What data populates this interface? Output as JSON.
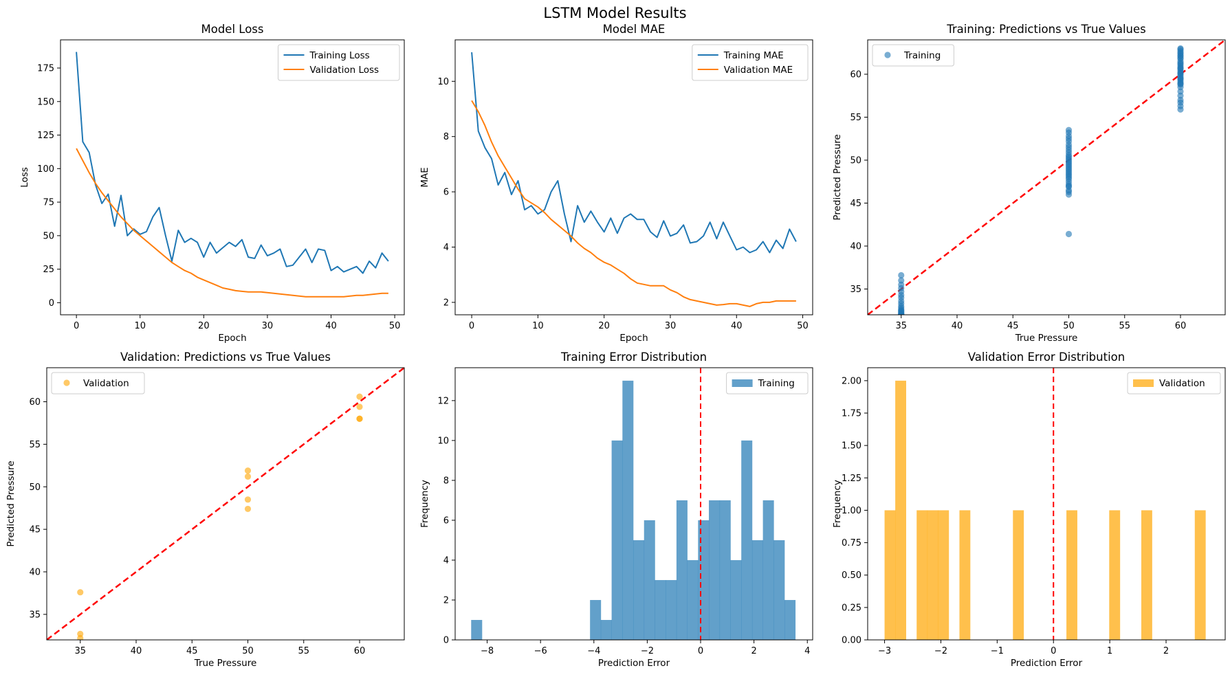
{
  "figure_title": "LSTM Model Results",
  "colors": {
    "blue": "#1f77b4",
    "orange": "#ff7f0e",
    "scatter_orange": "#ffa500",
    "ref_red": "#ff0000"
  },
  "chart_data": [
    {
      "type": "line",
      "title": "Model Loss",
      "xlabel": "Epoch",
      "ylabel": "Loss",
      "xlim": [
        -2.5,
        51.5
      ],
      "ylim": [
        -9,
        196
      ],
      "xticks": [
        0,
        10,
        20,
        30,
        40,
        50
      ],
      "yticks": [
        0,
        25,
        50,
        75,
        100,
        125,
        150,
        175
      ],
      "legend": "upper right",
      "x": [
        0,
        1,
        2,
        3,
        4,
        5,
        6,
        7,
        8,
        9,
        10,
        11,
        12,
        13,
        14,
        15,
        16,
        17,
        18,
        19,
        20,
        21,
        22,
        23,
        24,
        25,
        26,
        27,
        28,
        29,
        30,
        31,
        32,
        33,
        34,
        35,
        36,
        37,
        38,
        39,
        40,
        41,
        42,
        43,
        44,
        45,
        46,
        47,
        48,
        49
      ],
      "series": [
        {
          "name": "Training Loss",
          "color": "#1f77b4",
          "values": [
            187,
            120,
            112,
            88,
            74,
            81,
            57,
            80,
            50,
            55,
            51,
            53,
            64,
            71,
            50,
            31,
            54,
            45,
            48,
            45,
            34,
            45,
            37,
            41,
            45,
            42,
            47,
            34,
            33,
            43,
            35,
            37,
            40,
            27,
            28,
            34,
            40,
            30,
            40,
            39,
            24,
            27,
            23,
            25,
            27,
            22,
            31,
            26,
            37,
            31
          ]
        },
        {
          "name": "Validation Loss",
          "color": "#ff7f0e",
          "values": [
            115,
            106,
            97,
            89,
            82,
            76,
            70,
            64,
            59,
            54,
            50,
            46,
            42,
            38,
            34,
            30,
            27,
            24,
            22,
            19,
            17,
            15,
            13,
            11,
            10,
            9,
            8.5,
            8,
            8,
            8,
            7.5,
            7,
            6.5,
            6,
            5.5,
            5,
            4.5,
            4.5,
            4.5,
            4.5,
            4.5,
            4.5,
            4.5,
            5,
            5.5,
            5.5,
            6,
            6.5,
            7,
            7
          ]
        }
      ]
    },
    {
      "type": "line",
      "title": "Model MAE",
      "xlabel": "Epoch",
      "ylabel": "MAE",
      "xlim": [
        -2.5,
        51.5
      ],
      "ylim": [
        1.55,
        11.5
      ],
      "xticks": [
        0,
        10,
        20,
        30,
        40,
        50
      ],
      "yticks": [
        2,
        4,
        6,
        8,
        10
      ],
      "legend": "upper right",
      "x": [
        0,
        1,
        2,
        3,
        4,
        5,
        6,
        7,
        8,
        9,
        10,
        11,
        12,
        13,
        14,
        15,
        16,
        17,
        18,
        19,
        20,
        21,
        22,
        23,
        24,
        25,
        26,
        27,
        28,
        29,
        30,
        31,
        32,
        33,
        34,
        35,
        36,
        37,
        38,
        39,
        40,
        41,
        42,
        43,
        44,
        45,
        46,
        47,
        48,
        49
      ],
      "series": [
        {
          "name": "Training MAE",
          "color": "#1f77b4",
          "values": [
            11.05,
            8.2,
            7.6,
            7.2,
            6.25,
            6.7,
            5.9,
            6.4,
            5.35,
            5.5,
            5.2,
            5.35,
            6.0,
            6.4,
            5.2,
            4.2,
            5.5,
            4.9,
            5.3,
            4.9,
            4.55,
            5.05,
            4.5,
            5.05,
            5.2,
            5.0,
            5.0,
            4.55,
            4.35,
            4.95,
            4.4,
            4.5,
            4.8,
            4.15,
            4.2,
            4.4,
            4.9,
            4.3,
            4.9,
            4.4,
            3.9,
            4.0,
            3.8,
            3.9,
            4.2,
            3.8,
            4.25,
            3.95,
            4.65,
            4.2
          ]
        },
        {
          "name": "Validation MAE",
          "color": "#ff7f0e",
          "values": [
            9.3,
            8.9,
            8.4,
            7.8,
            7.3,
            6.9,
            6.5,
            6.1,
            5.75,
            5.6,
            5.45,
            5.25,
            5.0,
            4.8,
            4.6,
            4.4,
            4.15,
            3.95,
            3.8,
            3.6,
            3.45,
            3.35,
            3.2,
            3.05,
            2.85,
            2.7,
            2.65,
            2.6,
            2.6,
            2.6,
            2.45,
            2.35,
            2.2,
            2.1,
            2.05,
            2.0,
            1.95,
            1.9,
            1.92,
            1.95,
            1.95,
            1.9,
            1.85,
            1.95,
            2.0,
            2.0,
            2.05,
            2.05,
            2.05,
            2.05
          ]
        }
      ]
    },
    {
      "type": "scatter",
      "title": "Training: Predictions vs True Values",
      "xlabel": "True Pressure",
      "ylabel": "Predicted Pressure",
      "xlim": [
        32,
        64
      ],
      "ylim": [
        32,
        64
      ],
      "xticks": [
        35,
        40,
        45,
        50,
        55,
        60
      ],
      "yticks": [
        35,
        40,
        45,
        50,
        55,
        60
      ],
      "legend": "upper left",
      "reference_line": [
        32,
        64
      ],
      "series": [
        {
          "name": "Training",
          "color": "#1f77b4",
          "x": [
            35,
            35,
            35,
            35,
            35,
            35,
            35,
            35,
            35,
            35,
            35,
            35,
            35,
            35,
            35,
            35,
            35,
            35,
            35,
            35,
            35,
            35,
            35,
            35,
            35,
            50,
            50,
            50,
            50,
            50,
            50,
            50,
            50,
            50,
            50,
            50,
            50,
            50,
            50,
            50,
            50,
            50,
            50,
            50,
            50,
            50,
            50,
            50,
            50,
            50,
            50,
            50,
            50,
            50,
            50,
            50,
            50,
            60,
            60,
            60,
            60,
            60,
            60,
            60,
            60,
            60,
            60,
            60,
            60,
            60,
            60,
            60,
            60,
            60,
            60,
            60,
            60,
            60,
            60,
            60,
            60,
            60,
            60,
            60,
            60,
            60,
            60,
            60,
            60,
            60,
            60,
            60
          ],
          "y": [
            36.6,
            36.0,
            35.5,
            35.1,
            34.7,
            34.3,
            34.0,
            33.6,
            33.3,
            33.0,
            32.8,
            32.6,
            32.5,
            32.4,
            32.3,
            32.2,
            32.1,
            32.0,
            32.0,
            32.0,
            32.0,
            32.0,
            32.0,
            32.0,
            32.0,
            53.5,
            53.2,
            52.8,
            52.5,
            52.2,
            51.8,
            51.5,
            51.2,
            50.9,
            50.6,
            50.4,
            50.2,
            50.0,
            49.8,
            49.6,
            49.4,
            49.2,
            49.0,
            48.8,
            48.6,
            48.4,
            48.2,
            48.0,
            47.8,
            47.5,
            47.2,
            47.0,
            46.9,
            46.5,
            46.3,
            46.0,
            41.4,
            63.0,
            62.7,
            62.4,
            62.1,
            61.8,
            61.5,
            61.2,
            61.0,
            60.8,
            60.6,
            60.4,
            60.2,
            60.0,
            59.8,
            59.6,
            59.4,
            59.2,
            59.0,
            58.8,
            58.5,
            58.0,
            57.5,
            57.0,
            56.7,
            56.3,
            55.9,
            62.9,
            62.5,
            61.9,
            61.3,
            60.7,
            60.1,
            59.5,
            58.9,
            62.2
          ]
        }
      ]
    },
    {
      "type": "scatter",
      "title": "Validation: Predictions vs True Values",
      "xlabel": "True Pressure",
      "ylabel": "Predicted Pressure",
      "xlim": [
        32,
        64
      ],
      "ylim": [
        32,
        64
      ],
      "xticks": [
        35,
        40,
        45,
        50,
        55,
        60
      ],
      "yticks": [
        35,
        40,
        45,
        50,
        55,
        60
      ],
      "legend": "upper left",
      "reference_line": [
        32,
        64
      ],
      "series": [
        {
          "name": "Validation",
          "color": "#ffa500",
          "x": [
            35,
            35,
            35,
            50,
            50,
            50,
            50,
            60,
            60,
            60,
            60
          ],
          "y": [
            37.6,
            32.7,
            32.2,
            51.9,
            51.2,
            48.5,
            47.4,
            60.6,
            59.4,
            58.0,
            58.0
          ]
        }
      ]
    },
    {
      "type": "bar",
      "title": "Training Error Distribution",
      "xlabel": "Prediction Error",
      "ylabel": "Frequency",
      "xlim": [
        -9.2,
        4.2
      ],
      "ylim": [
        0,
        13.65
      ],
      "xticks": [
        -8,
        -6,
        -4,
        -2,
        0,
        2,
        4
      ],
      "yticks": [
        0,
        2,
        4,
        6,
        8,
        10,
        12
      ],
      "legend": "upper right",
      "vline": 0,
      "bin_start": -8.6,
      "bin_width": 0.405,
      "series": [
        {
          "name": "Training",
          "color": "#1f77b4",
          "values": [
            1,
            0,
            0,
            0,
            0,
            0,
            0,
            0,
            0,
            0,
            0,
            2,
            1,
            10,
            13,
            5,
            6,
            3,
            3,
            7,
            4,
            6,
            7,
            7,
            4,
            10,
            5,
            7,
            5,
            2
          ]
        }
      ]
    },
    {
      "type": "bar",
      "title": "Validation Error Distribution",
      "xlabel": "Prediction Error",
      "ylabel": "Frequency",
      "xlim": [
        -3.3,
        3.05
      ],
      "ylim": [
        0,
        2.1
      ],
      "xticks": [
        -3,
        -2,
        -1,
        0,
        1,
        2
      ],
      "yticks": [
        0.0,
        0.25,
        0.5,
        0.75,
        1.0,
        1.25,
        1.5,
        1.75,
        2.0
      ],
      "yticklabels": [
        "0.00",
        "0.25",
        "0.50",
        "0.75",
        "1.00",
        "1.25",
        "1.50",
        "1.75",
        "2.00"
      ],
      "legend": "upper right",
      "vline": 0,
      "bin_start": -3.0,
      "bin_width": 0.19,
      "series": [
        {
          "name": "Validation",
          "color": "#ffa500",
          "values": [
            1,
            2,
            0,
            1,
            1,
            1,
            0,
            1,
            0,
            0,
            0,
            0,
            1,
            0,
            0,
            0,
            0,
            1,
            0,
            0,
            0,
            1,
            0,
            0,
            1,
            0,
            0,
            0,
            0,
            1
          ]
        }
      ]
    }
  ]
}
